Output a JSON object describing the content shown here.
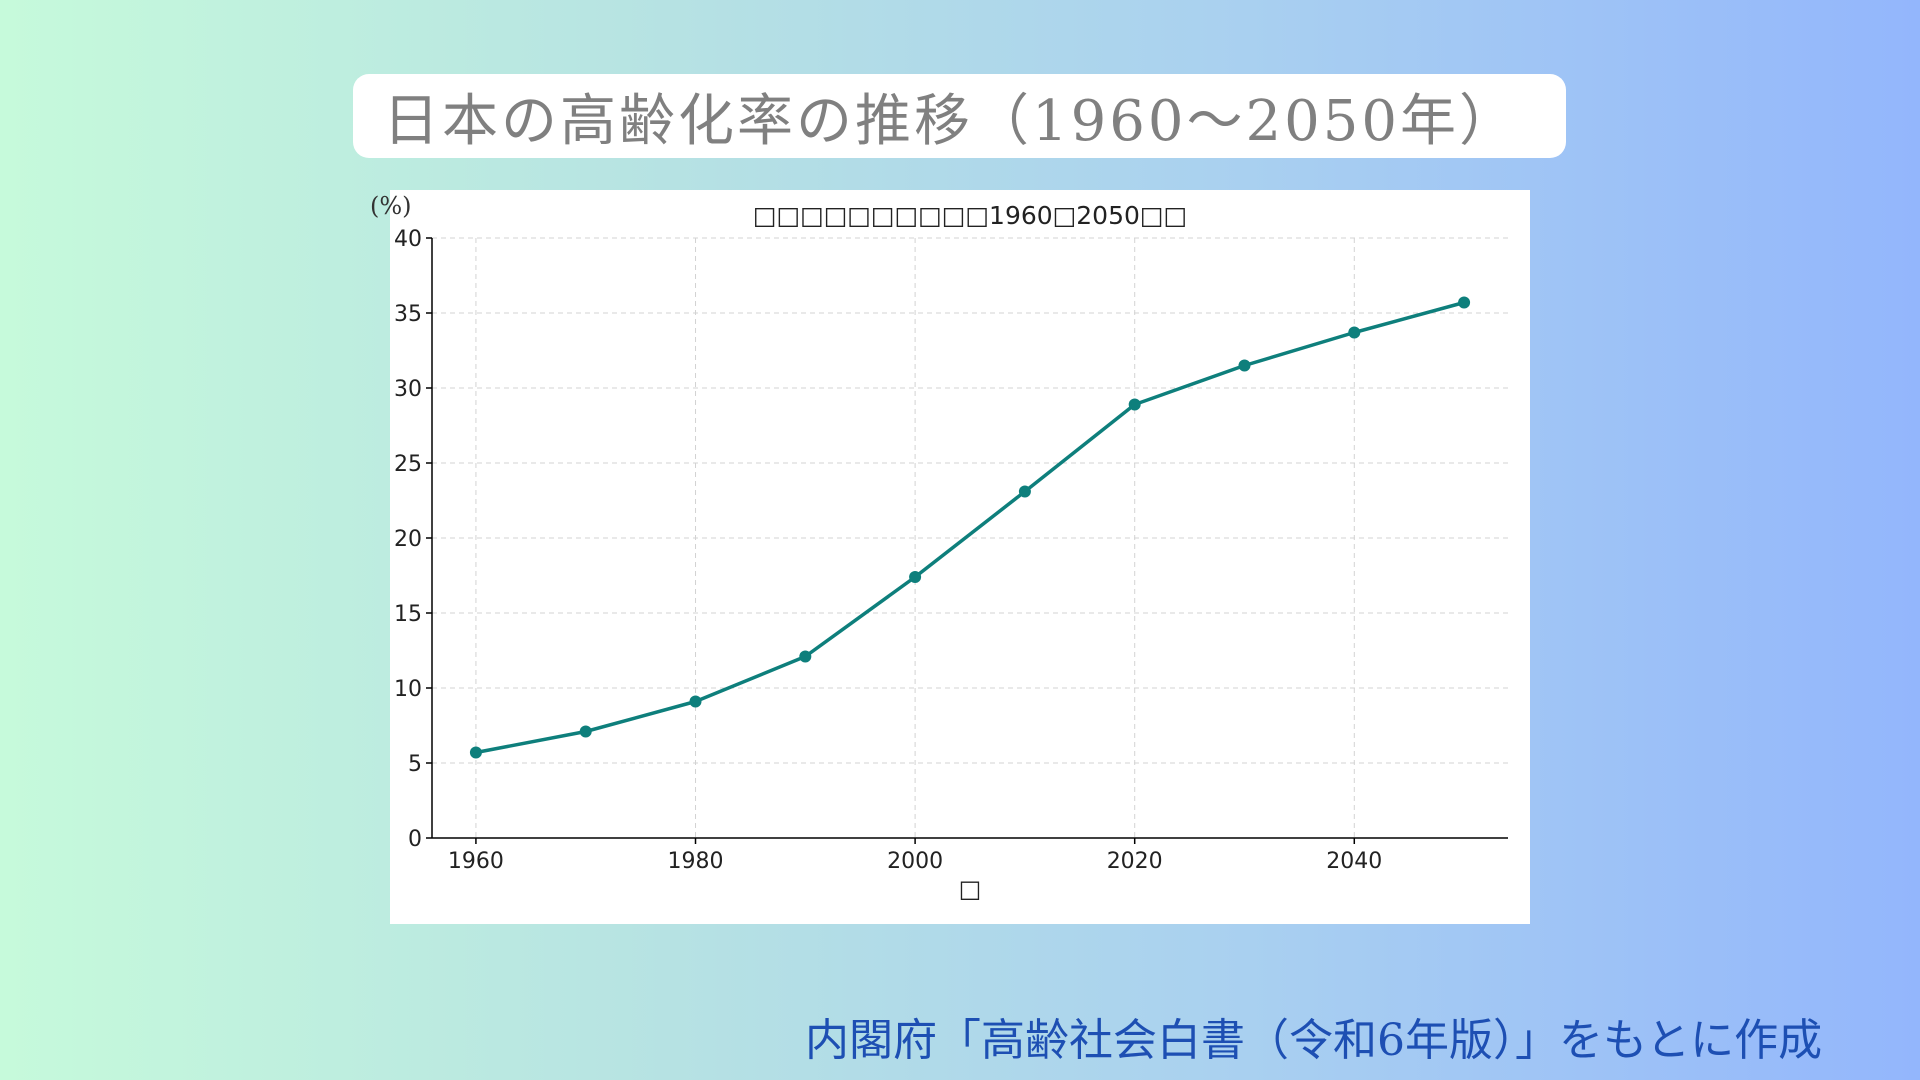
{
  "page": {
    "title": "日本の高齢化率の推移（1960〜2050年）",
    "source": "内閣府「高齢社会白書（令和6年版）」をもとに作成"
  },
  "chart_data": {
    "type": "line",
    "title": "□□□□□□□□□□1960□2050□□",
    "xlabel": "□",
    "ylabel": "(%)",
    "x": [
      1960,
      1970,
      1980,
      1990,
      2000,
      2010,
      2020,
      2030,
      2040,
      2050
    ],
    "series": [
      {
        "values": [
          5.7,
          7.1,
          9.1,
          12.1,
          17.4,
          23.1,
          28.9,
          31.5,
          33.7,
          35.7
        ]
      }
    ],
    "xlim": [
      1956,
      2054
    ],
    "ylim": [
      0,
      40
    ],
    "xticks": [
      1960,
      1980,
      2000,
      2020,
      2040
    ],
    "yticks": [
      0,
      5,
      10,
      15,
      20,
      25,
      30,
      35,
      40
    ],
    "grid": true,
    "line_color": "#0e7f7c",
    "grid_color": "#d3d3d3"
  }
}
